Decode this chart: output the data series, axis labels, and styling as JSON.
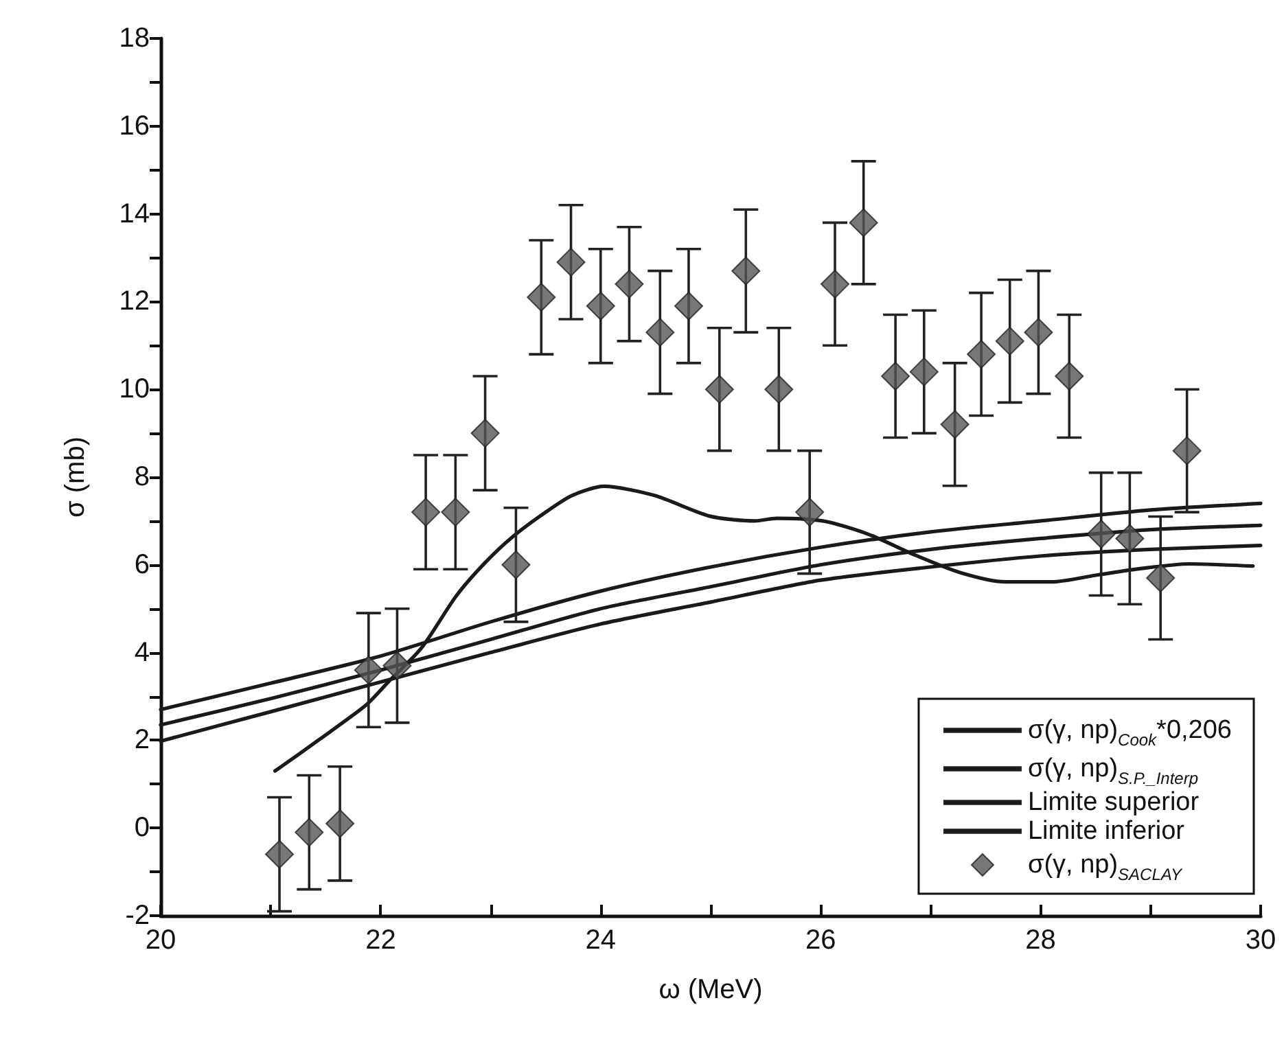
{
  "chart_data": {
    "type": "line",
    "xlabel": "ω (MeV)",
    "ylabel": "σ (mb)",
    "xlim": [
      20,
      30
    ],
    "xticks": [
      20,
      {
        "value": 21,
        "label": null
      },
      22,
      {
        "value": 23,
        "label": null
      },
      24,
      {
        "value": 25,
        "label": null
      },
      26,
      {
        "value": 27,
        "label": null
      },
      28,
      {
        "value": 29,
        "label": null
      },
      30
    ],
    "ylim": [
      -2,
      18
    ],
    "yticks": [
      -2,
      {
        "value": -1,
        "label": null
      },
      0,
      {
        "value": 1,
        "label": null
      },
      2,
      {
        "value": 3,
        "label": null
      },
      4,
      {
        "value": 5,
        "label": null
      },
      6,
      {
        "value": 7,
        "label": null
      },
      8,
      {
        "value": 9,
        "label": null
      },
      10,
      {
        "value": 11,
        "label": null
      },
      12,
      {
        "value": 13,
        "label": null
      },
      14,
      {
        "value": 15,
        "label": null
      },
      16,
      {
        "value": 17,
        "label": null
      },
      18
    ],
    "grid": false,
    "legend": "bottom right",
    "series": [
      {
        "name": "σ(γ, np)$_{Cook}$*0,206",
        "color": "#1a1a1a",
        "marker": "none",
        "line_style": "solid",
        "x": [
          20,
          21,
          22,
          23,
          24,
          25,
          26,
          27,
          28,
          29,
          30
        ],
        "values": [
          2.35,
          2.95,
          3.6,
          4.3,
          5.0,
          5.5,
          6.0,
          6.35,
          6.6,
          6.8,
          6.9
        ]
      },
      {
        "name": "σ(γ, np)$_{S.P._Interp}$",
        "color": "#1a1a1a",
        "marker": "none",
        "line_style": "solid",
        "x": [
          21.04,
          21.45,
          21.87,
          22.07,
          22.37,
          22.69,
          22.95,
          23.2,
          23.5,
          23.74,
          24.03,
          24.49,
          24.99,
          25.4,
          25.6,
          26.02,
          26.43,
          26.85,
          27.27,
          27.68,
          28.1,
          28.52,
          28.93,
          29.35,
          29.93
        ],
        "values": [
          1.3,
          2.03,
          2.81,
          3.33,
          4.1,
          5.3,
          6.05,
          6.64,
          7.2,
          7.58,
          7.79,
          7.58,
          7.11,
          7.0,
          7.06,
          7.0,
          6.7,
          6.23,
          5.82,
          5.61,
          5.61,
          5.77,
          5.92,
          6.02,
          5.97
        ]
      },
      {
        "name": "Limite superior",
        "color": "#1a1a1a",
        "marker": "none",
        "line_style": "solid",
        "x": [
          20,
          21,
          22,
          23,
          24,
          25,
          26,
          27,
          28,
          29,
          30
        ],
        "values": [
          2.7,
          3.3,
          3.92,
          4.7,
          5.4,
          5.95,
          6.4,
          6.75,
          7.0,
          7.25,
          7.4
        ]
      },
      {
        "name": "Limite inferior",
        "color": "#1a1a1a",
        "marker": "none",
        "line_style": "solid",
        "x": [
          20,
          21,
          22,
          23,
          24,
          25,
          26,
          27,
          28,
          29,
          30
        ],
        "values": [
          1.98,
          2.65,
          3.33,
          4.0,
          4.65,
          5.15,
          5.65,
          5.95,
          6.2,
          6.35,
          6.44
        ]
      },
      {
        "name": "σ(γ, np)$_{SACLAY}$",
        "type": "scatter",
        "color": "#555555",
        "marker": "diamond",
        "x": [
          21.08,
          21.35,
          21.63,
          21.89,
          22.15,
          22.41,
          22.68,
          22.95,
          23.23,
          23.46,
          23.73,
          24.0,
          24.26,
          24.54,
          24.8,
          25.08,
          25.32,
          25.62,
          25.9,
          26.13,
          26.39,
          26.68,
          26.94,
          27.22,
          27.46,
          27.72,
          27.98,
          28.26,
          28.55,
          28.81,
          29.09,
          29.33
        ],
        "values": [
          -0.6,
          -0.1,
          0.1,
          3.6,
          3.7,
          7.2,
          7.2,
          9.0,
          6.0,
          12.1,
          12.9,
          11.9,
          12.4,
          11.3,
          11.9,
          10.0,
          12.7,
          10.0,
          7.2,
          12.4,
          13.8,
          10.3,
          10.4,
          9.2,
          10.8,
          11.1,
          11.3,
          10.3,
          6.7,
          6.6,
          5.7,
          8.6
        ],
        "errors": [
          1.3,
          1.3,
          1.3,
          1.3,
          1.3,
          1.3,
          1.3,
          1.3,
          1.3,
          1.3,
          1.3,
          1.3,
          1.3,
          1.4,
          1.3,
          1.4,
          1.4,
          1.4,
          1.4,
          1.4,
          1.4,
          1.4,
          1.4,
          1.4,
          1.4,
          1.4,
          1.4,
          1.4,
          1.4,
          1.5,
          1.4,
          1.4
        ]
      }
    ]
  }
}
